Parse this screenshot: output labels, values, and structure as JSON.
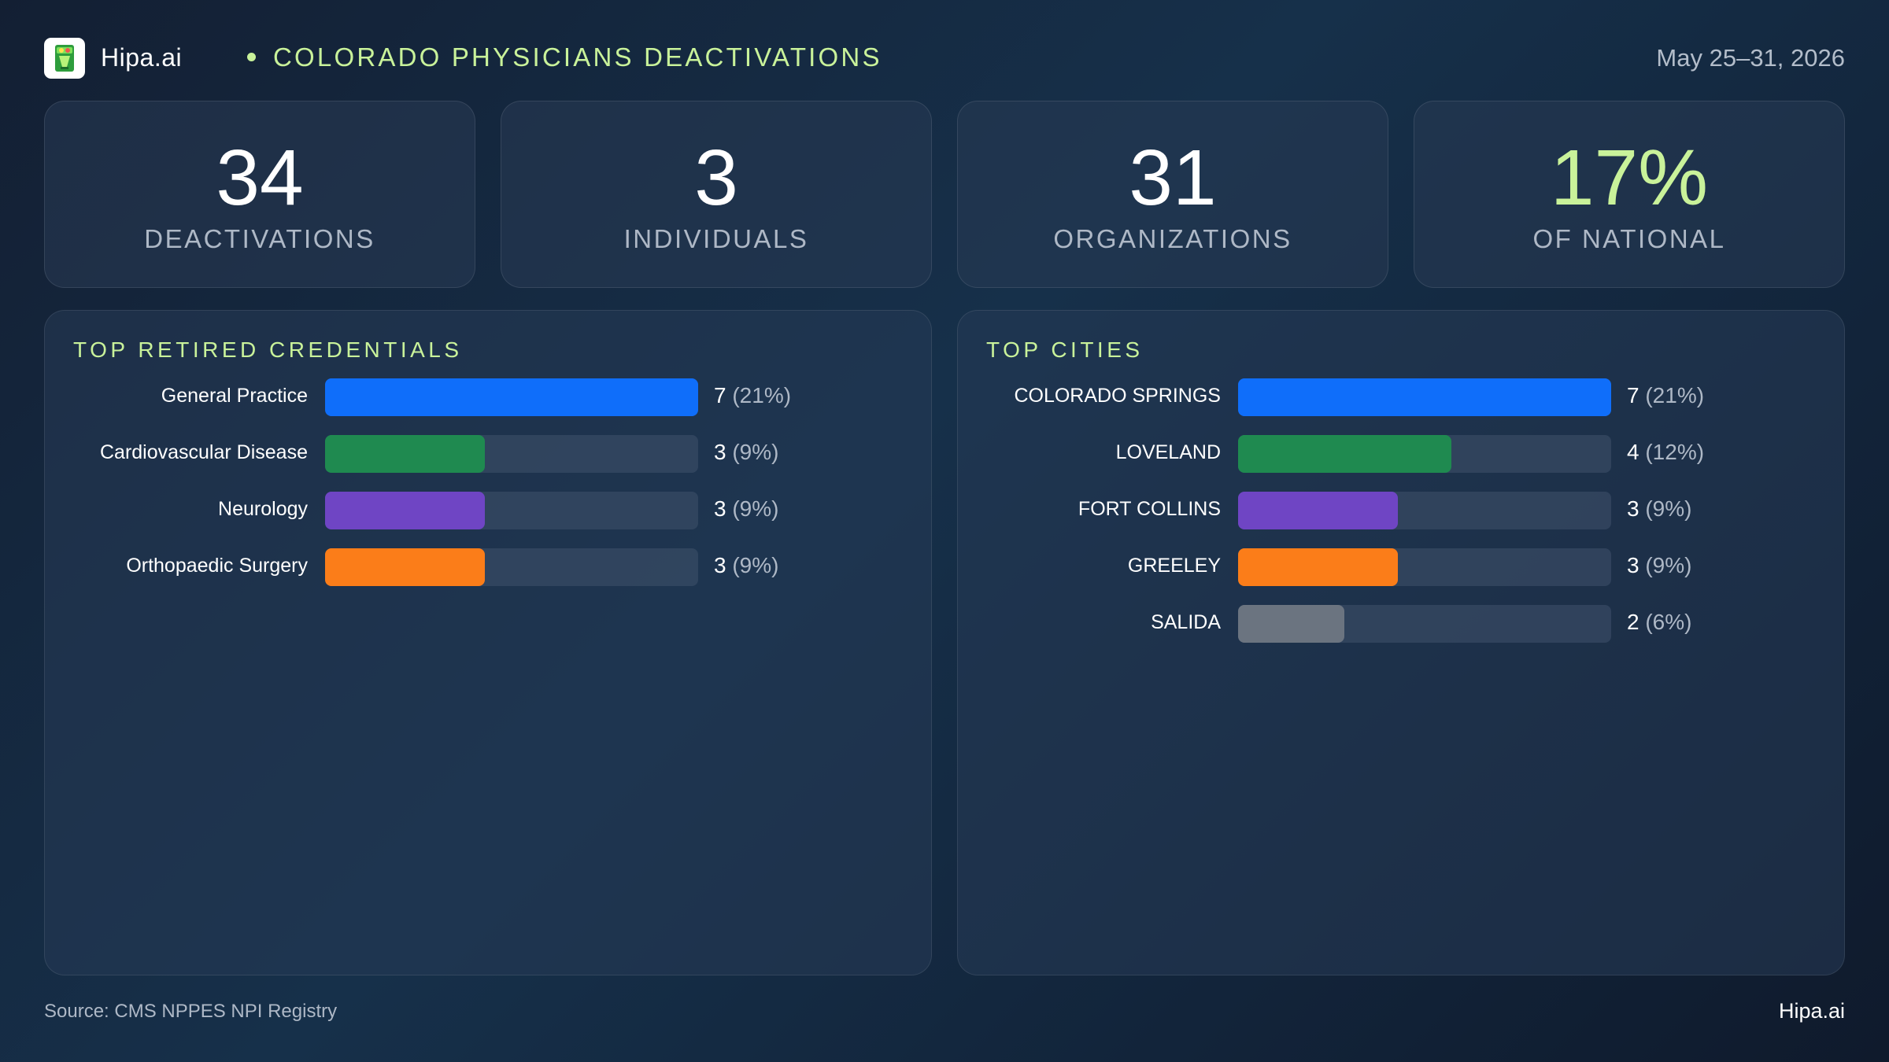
{
  "header": {
    "brand": "Hipa.ai",
    "title": "COLORADO PHYSICIANS DEACTIVATIONS",
    "date_range": "May 25–31, 2026",
    "logo_icon": "cocktail-glass-icon"
  },
  "stats": [
    {
      "value": "34",
      "label": "DEACTIVATIONS"
    },
    {
      "value": "3",
      "label": "INDIVIDUALS"
    },
    {
      "value": "31",
      "label": "ORGANIZATIONS"
    },
    {
      "value": "17%",
      "label": "OF NATIONAL"
    }
  ],
  "colors": {
    "accent": "#c9f29a",
    "bar_blue": "#0f6efa",
    "bar_green": "#1f8a50",
    "bar_purple": "#6f45c4",
    "bar_orange": "#fb7d19",
    "bar_gray": "#6b7480"
  },
  "chart_data": [
    {
      "type": "bar",
      "orientation": "horizontal",
      "title": "TOP RETIRED CREDENTIALS",
      "categories": [
        "General Practice",
        "Cardiovascular Disease",
        "Neurology",
        "Orthopaedic Surgery"
      ],
      "values": [
        7,
        3,
        3,
        3
      ],
      "percent_labels": [
        "(21%)",
        "(9%)",
        "(9%)",
        "(9%)"
      ],
      "colors": [
        "#0f6efa",
        "#1f8a50",
        "#6f45c4",
        "#fb7d19"
      ],
      "xlim": [
        0,
        7
      ]
    },
    {
      "type": "bar",
      "orientation": "horizontal",
      "title": "TOP CITIES",
      "categories": [
        "COLORADO SPRINGS",
        "LOVELAND",
        "FORT COLLINS",
        "GREELEY",
        "SALIDA"
      ],
      "values": [
        7,
        4,
        3,
        3,
        2
      ],
      "percent_labels": [
        "(21%)",
        "(12%)",
        "(9%)",
        "(9%)",
        "(6%)"
      ],
      "colors": [
        "#0f6efa",
        "#1f8a50",
        "#6f45c4",
        "#fb7d19",
        "#6b7480"
      ],
      "xlim": [
        0,
        7
      ]
    }
  ],
  "footer": {
    "source": "Source: CMS NPPES NPI Registry",
    "brand": "Hipa.ai"
  }
}
